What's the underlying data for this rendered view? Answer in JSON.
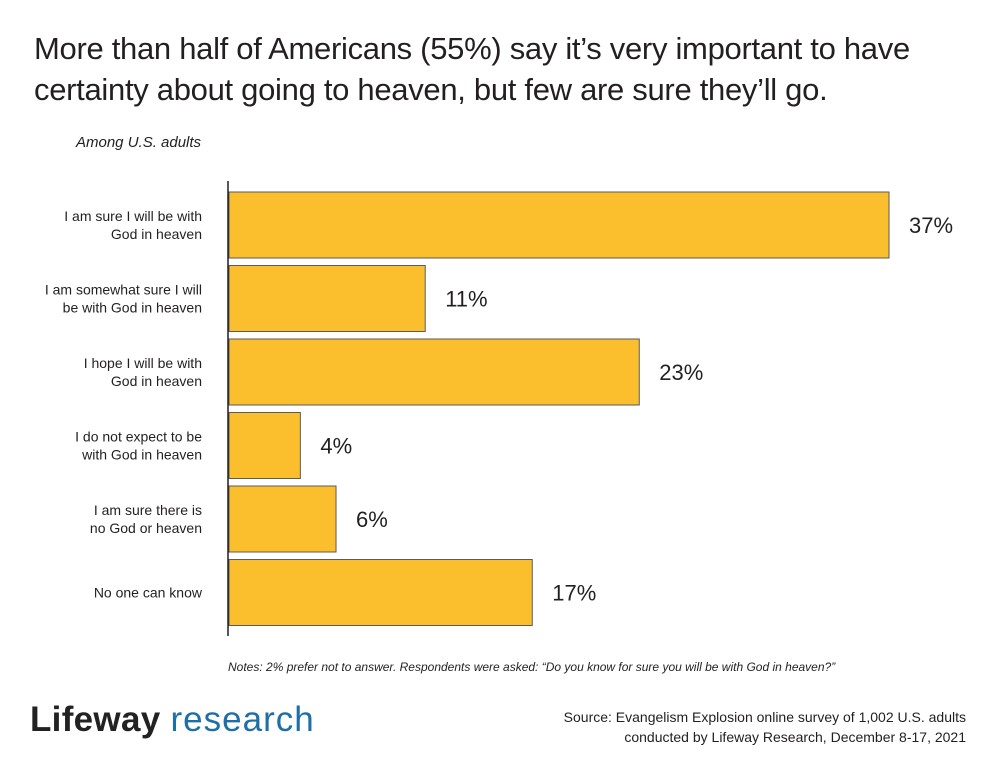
{
  "title": "More than half of Americans (55%) say it’s very important to have certainty about going to heaven, but few are sure they’ll go.",
  "subtitle": "Among U.S. adults",
  "colors": {
    "bar": "#fbbf2e",
    "bar_stroke": "#5a5a5a",
    "axis": "#231f20",
    "research_blue": "#1d6fa5"
  },
  "chart_data": {
    "type": "bar",
    "orientation": "horizontal",
    "title": "",
    "xlabel": "",
    "ylabel": "",
    "xlim": [
      0,
      37
    ],
    "grid": false,
    "categories": [
      [
        "I am sure I will be with",
        "God in heaven"
      ],
      [
        "I am somewhat sure I will",
        "be with God in heaven"
      ],
      [
        "I hope I will be with",
        "God in heaven"
      ],
      [
        "I do not expect to be",
        "with God in heaven"
      ],
      [
        "I am sure there is",
        "no God or heaven"
      ],
      [
        "No one can know"
      ]
    ],
    "values": [
      37,
      11,
      23,
      4,
      6,
      17
    ],
    "data_labels": [
      "37%",
      "11%",
      "23%",
      "4%",
      "6%",
      "17%"
    ]
  },
  "notes": "Notes: 2% prefer not to answer. Respondents were asked: “Do you know for sure you will be with God in heaven?”",
  "logo": {
    "brand": "Lifeway",
    "sub": "research"
  },
  "source": {
    "line1": "Source: Evangelism Explosion online survey of 1,002 U.S. adults",
    "line2": "conducted by Lifeway Research, December 8-17, 2021"
  }
}
